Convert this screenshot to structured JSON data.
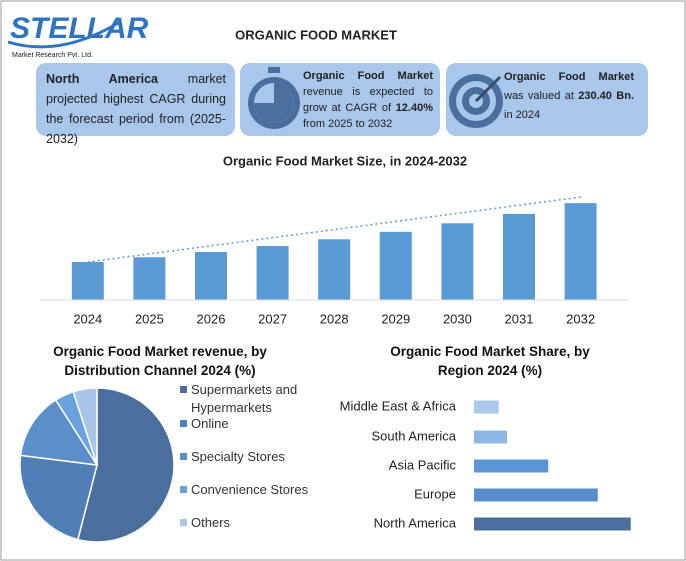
{
  "header": {
    "logo": "STELLAR",
    "logo_sub": "Market Research Pvt. Ltd.",
    "title": "ORGANIC FOOD MARKET"
  },
  "info_boxes": [
    [
      "North America",
      " market projected highest CAGR during the forecast period from (2025-2032)"
    ],
    [
      "Organic Food Market",
      " revenue is expected to grow at CAGR of ",
      "12.40%",
      " from 2025 to 2032"
    ],
    [
      "Organic Food Market",
      " was valued at ",
      "230.40 Bn.",
      " in 2024"
    ]
  ],
  "chart_data": [
    {
      "type": "bar",
      "title": "Organic Food Market Size, in 2024-2032",
      "categories": [
        "2024",
        "2025",
        "2026",
        "2027",
        "2028",
        "2029",
        "2030",
        "2031",
        "2032"
      ],
      "values": [
        230.4,
        259,
        291,
        327,
        368,
        413,
        465,
        522,
        587
      ],
      "color": "#5b9bd5",
      "ylim": [
        0,
        600
      ],
      "trendline": true
    },
    {
      "type": "pie",
      "title": "Organic Food Market revenue, by Distribution Channel 2024 (%)",
      "categories": [
        "Supermarkets and Hypermarkets",
        "Online",
        "Specialty Stores",
        "Convenience Stores",
        "Others"
      ],
      "values": [
        54,
        23,
        14,
        4,
        5
      ],
      "colors": [
        "#4a6f9f",
        "#4f7fb6",
        "#5b8fca",
        "#6aa2dc",
        "#a9c6e8"
      ]
    },
    {
      "type": "hbar",
      "title": "Organic Food Market Share, by Region 2024 (%)",
      "categories": [
        "North America",
        "Europe",
        "Asia Pacific",
        "South America",
        "Middle East & Africa"
      ],
      "values": [
        38,
        30,
        18,
        8,
        6
      ],
      "colors": [
        "#4a6f9c",
        "#5a8dcc",
        "#5b94d7",
        "#8eb7e5",
        "#aac9ed"
      ],
      "xlim": [
        0,
        40
      ]
    }
  ]
}
